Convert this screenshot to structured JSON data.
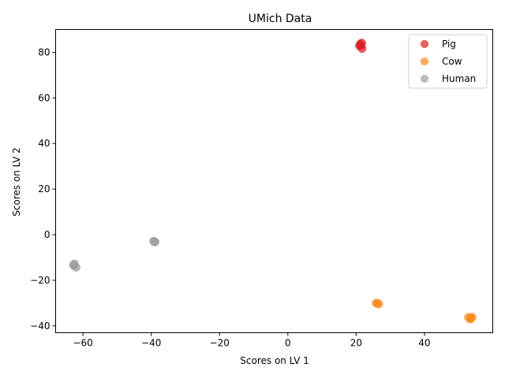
{
  "chart_data": {
    "type": "scatter",
    "title": "UMich Data",
    "xlabel": "Scores on LV 1",
    "ylabel": "Scores on LV 2",
    "xlim": [
      -68,
      60
    ],
    "ylim": [
      -43,
      90
    ],
    "xticks": [
      -60,
      -40,
      -20,
      0,
      20,
      40
    ],
    "yticks": [
      -40,
      -20,
      0,
      20,
      40,
      60,
      80
    ],
    "grid": false,
    "legend_position": "top-right",
    "series": [
      {
        "name": "Pig",
        "color": "#e02020",
        "points": [
          [
            21.2,
            83.5
          ],
          [
            21.6,
            84.1
          ],
          [
            21.0,
            82.9
          ],
          [
            21.7,
            81.7
          ],
          [
            21.4,
            83.0
          ]
        ]
      },
      {
        "name": "Cow",
        "color": "#ff8c1a",
        "points": [
          [
            25.9,
            -30.0
          ],
          [
            26.6,
            -30.4
          ],
          [
            26.2,
            -30.1
          ],
          [
            52.9,
            -36.3
          ],
          [
            53.4,
            -37.0
          ],
          [
            53.9,
            -36.2
          ],
          [
            53.6,
            -36.6
          ]
        ]
      },
      {
        "name": "Human",
        "color": "#a0a0a0",
        "points": [
          [
            -62.8,
            -13.3
          ],
          [
            -62.5,
            -12.8
          ],
          [
            -62.0,
            -14.3
          ],
          [
            -62.6,
            -13.6
          ],
          [
            -39.1,
            -3.1
          ],
          [
            -39.3,
            -2.8
          ],
          [
            -38.9,
            -3.2
          ]
        ]
      }
    ]
  }
}
